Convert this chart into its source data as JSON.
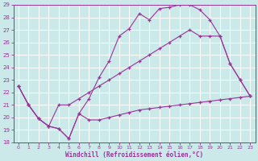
{
  "xlabel": "Windchill (Refroidissement éolien,°C)",
  "xlim": [
    -0.5,
    23.5
  ],
  "ylim": [
    18,
    29
  ],
  "yticks": [
    18,
    19,
    20,
    21,
    22,
    23,
    24,
    25,
    26,
    27,
    28,
    29
  ],
  "xticks": [
    0,
    1,
    2,
    3,
    4,
    5,
    6,
    7,
    8,
    9,
    10,
    11,
    12,
    13,
    14,
    15,
    16,
    17,
    18,
    19,
    20,
    21,
    22,
    23
  ],
  "bg_color": "#cce9e9",
  "line_color": "#993399",
  "grid_color": "#ffffff",
  "line1_x": [
    0,
    1,
    2,
    3,
    4,
    5,
    6,
    7,
    8,
    9,
    10,
    11,
    12,
    13,
    14,
    15,
    16,
    17,
    18,
    19,
    20,
    21,
    22,
    23
  ],
  "line1_y": [
    22.5,
    21.0,
    19.9,
    19.3,
    19.1,
    18.3,
    20.3,
    19.8,
    19.8,
    20.0,
    20.2,
    20.4,
    20.6,
    20.7,
    20.8,
    20.9,
    21.0,
    21.1,
    21.2,
    21.3,
    21.4,
    21.5,
    21.6,
    21.7
  ],
  "line2_x": [
    0,
    1,
    2,
    3,
    4,
    5,
    6,
    7,
    8,
    9,
    10,
    11,
    12,
    13,
    14,
    15,
    16,
    17,
    18,
    19,
    20,
    21,
    22,
    23
  ],
  "line2_y": [
    22.5,
    21.0,
    19.9,
    19.3,
    19.1,
    18.3,
    20.3,
    21.5,
    23.2,
    24.5,
    26.5,
    27.1,
    28.3,
    27.8,
    28.7,
    28.8,
    29.0,
    29.0,
    28.6,
    27.8,
    26.5,
    24.3,
    23.0,
    21.7
  ],
  "line3_x": [
    0,
    1,
    2,
    3,
    4,
    5,
    6,
    7,
    8,
    9,
    10,
    11,
    12,
    13,
    14,
    15,
    16,
    17,
    18,
    19,
    20,
    21,
    22,
    23
  ],
  "line3_y": [
    22.5,
    21.0,
    19.9,
    19.3,
    21.0,
    21.0,
    21.5,
    22.0,
    22.5,
    23.0,
    23.5,
    24.0,
    24.5,
    25.0,
    25.5,
    26.0,
    26.5,
    27.0,
    26.5,
    26.5,
    26.5,
    24.3,
    23.0,
    21.7
  ]
}
